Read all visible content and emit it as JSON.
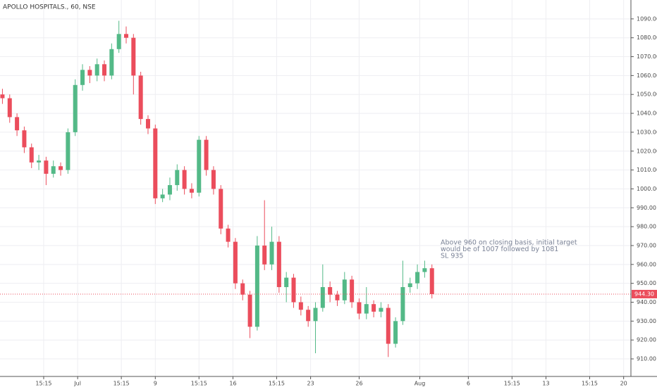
{
  "chart_data": {
    "type": "candlestick",
    "title": "APOLLO HOSPITALS., 60, NSE",
    "annotation": [
      "Above 960 on closing basis, initial target",
      "would be of 1007 followed by 1081",
      "SL 935"
    ],
    "x": [
      0,
      3,
      6,
      9,
      12,
      15,
      18,
      21,
      24,
      27,
      30,
      33,
      36,
      39,
      42,
      45,
      48,
      51,
      54,
      57,
      60,
      63,
      66,
      69,
      72,
      75,
      78,
      81,
      84,
      87,
      90,
      93,
      96,
      99,
      102,
      105,
      108,
      111,
      114,
      117,
      120,
      123,
      126,
      129,
      132,
      135,
      138,
      141,
      144,
      147,
      150,
      153,
      156,
      159,
      162,
      165,
      168,
      171,
      174,
      177
    ],
    "open": [
      1050,
      1048,
      1038,
      1031,
      1022,
      1014,
      1015,
      1008,
      1012,
      1010,
      1030,
      1055,
      1063,
      1060,
      1066,
      1060,
      1074,
      1082,
      1080,
      1060,
      1037,
      1032,
      995,
      997,
      1002,
      1010,
      1000,
      998,
      1026,
      1010,
      1000,
      979,
      972,
      950,
      944,
      927,
      970,
      960,
      972,
      948,
      953,
      940,
      936,
      930,
      937,
      948,
      944,
      941,
      952,
      940,
      934,
      939,
      935,
      937,
      918,
      930,
      948,
      950,
      956,
      958
    ],
    "high": [
      1053,
      1050,
      1040,
      1033,
      1024,
      1018,
      1017,
      1015,
      1014,
      1032,
      1058,
      1066,
      1065,
      1069,
      1068,
      1077,
      1089,
      1086,
      1082,
      1062,
      1039,
      1034,
      1000,
      1006,
      1013,
      1012,
      1003,
      1028,
      1028,
      1012,
      1002,
      981,
      974,
      952,
      946,
      975,
      994,
      980,
      975,
      956,
      955,
      943,
      938,
      940,
      960,
      951,
      946,
      956,
      954,
      942,
      948,
      941,
      940,
      939,
      932,
      962,
      953,
      960,
      962,
      960
    ],
    "low": [
      1045,
      1035,
      1028,
      1019,
      1011,
      1010,
      1002,
      1006,
      1007,
      1008,
      1028,
      1052,
      1056,
      1057,
      1057,
      1058,
      1072,
      1077,
      1050,
      1034,
      1029,
      992,
      993,
      994,
      999,
      997,
      995,
      996,
      1007,
      997,
      976,
      969,
      947,
      941,
      921,
      925,
      957,
      957,
      945,
      940,
      937,
      933,
      927,
      913,
      935,
      940,
      938,
      939,
      937,
      931,
      931,
      932,
      932,
      911,
      916,
      928,
      945,
      947,
      953,
      942
    ],
    "close": [
      1048,
      1038,
      1031,
      1022,
      1014,
      1015,
      1008,
      1012,
      1010,
      1030,
      1055,
      1063,
      1060,
      1066,
      1060,
      1074,
      1082,
      1080,
      1060,
      1037,
      1032,
      995,
      997,
      1002,
      1010,
      1000,
      998,
      1026,
      1010,
      1000,
      979,
      972,
      950,
      944,
      927,
      970,
      960,
      972,
      948,
      953,
      940,
      936,
      930,
      937,
      948,
      944,
      941,
      952,
      940,
      934,
      939,
      935,
      937,
      918,
      930,
      948,
      950,
      956,
      958,
      944.3
    ],
    "up_color": "#53b987",
    "down_color": "#eb4d5c",
    "last_price": 944.3,
    "last_price_label": "944.30",
    "xlim": [
      -1,
      259
    ],
    "xticks": [
      {
        "value": 17,
        "label": "15:15"
      },
      {
        "value": 31,
        "label": "Jul"
      },
      {
        "value": 49,
        "label": "15:15"
      },
      {
        "value": 63,
        "label": "9"
      },
      {
        "value": 81,
        "label": "15:15"
      },
      {
        "value": 95,
        "label": "16"
      },
      {
        "value": 113,
        "label": "15:15"
      },
      {
        "value": 127,
        "label": "23"
      },
      {
        "value": 147,
        "label": "26"
      },
      {
        "value": 172,
        "label": "Aug"
      },
      {
        "value": 192,
        "label": "6"
      },
      {
        "value": 210,
        "label": "15:15"
      },
      {
        "value": 224,
        "label": "13"
      },
      {
        "value": 242,
        "label": "15:15"
      },
      {
        "value": 256,
        "label": "20"
      }
    ],
    "ylim": [
      900.7,
      1100
    ],
    "yticks": [
      {
        "value": 910,
        "label": "910.00"
      },
      {
        "value": 920,
        "label": "920.00"
      },
      {
        "value": 930,
        "label": "930.00"
      },
      {
        "value": 940,
        "label": "940.00"
      },
      {
        "value": 950,
        "label": "950.00"
      },
      {
        "value": 960,
        "label": "960.00"
      },
      {
        "value": 970,
        "label": "970.00"
      },
      {
        "value": 980,
        "label": "980.00"
      },
      {
        "value": 990,
        "label": "990.00"
      },
      {
        "value": 1000,
        "label": "1000.00"
      },
      {
        "value": 1010,
        "label": "1010.00"
      },
      {
        "value": 1020,
        "label": "1020.00"
      },
      {
        "value": 1030,
        "label": "1030.00"
      },
      {
        "value": 1040,
        "label": "1040.00"
      },
      {
        "value": 1050,
        "label": "1050.00"
      },
      {
        "value": 1060,
        "label": "1060.00"
      },
      {
        "value": 1070,
        "label": "1070.00"
      },
      {
        "value": 1080,
        "label": "1080.00"
      },
      {
        "value": 1090,
        "label": "1090.00"
      }
    ],
    "grid": true
  }
}
